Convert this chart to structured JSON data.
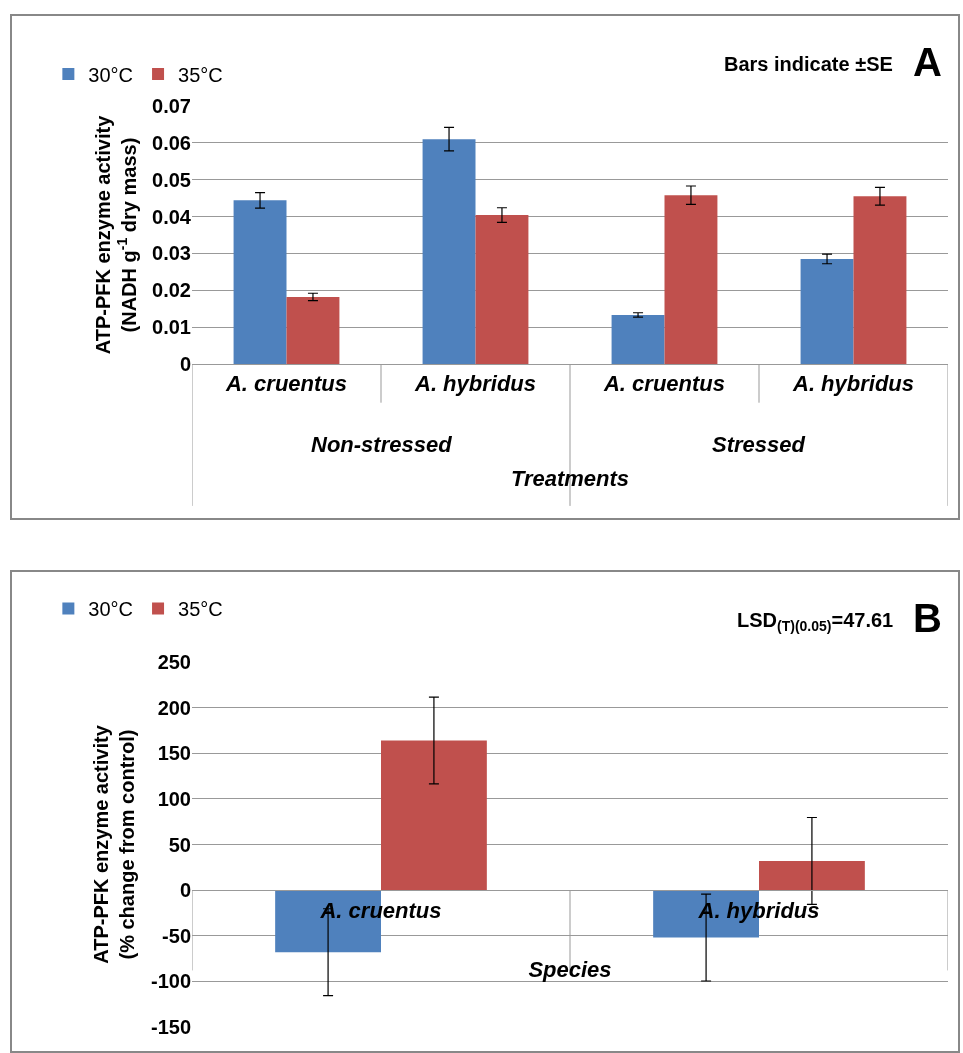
{
  "chart_data": [
    {
      "type": "bar",
      "title": "A",
      "subtitle": "Bars indicate ±SE",
      "xlabel": "Treatments",
      "ylabel": "ATP-PFK enzyme activity\n(NADH g$^{-1}$ dry mass)",
      "categories": [
        "A. cruentus",
        "A. hybridus",
        "A. cruentus",
        "A. hybridus"
      ],
      "annotations": [
        "Non-stressed",
        "Stressed"
      ],
      "series": [
        {
          "name": "30°C",
          "color": "#4f81bd",
          "values": [
            0.0444,
            0.061,
            0.0133,
            0.0285
          ],
          "errors": [
            0.0021,
            0.0032,
            0.0006,
            0.0013
          ]
        },
        {
          "name": "35°C",
          "color": "#c0504d",
          "values": [
            0.0182,
            0.0404,
            0.0458,
            0.0455
          ],
          "errors": [
            0.001,
            0.002,
            0.0025,
            0.0024
          ]
        }
      ],
      "ylim": [
        0,
        0.07
      ],
      "yticks": [
        0,
        0.01,
        0.02,
        0.03,
        0.04,
        0.05,
        0.06,
        0.07
      ],
      "grid": "y",
      "legend": "top left"
    },
    {
      "type": "bar",
      "title": "B",
      "subtitle": "LSD$_{(T)(0.05)}$=47.61",
      "xlabel": "Species",
      "ylabel": "ATP-PFK enzyme activity\n(% change from control)",
      "categories": [
        "A. cruentus",
        "A. hybridus"
      ],
      "series": [
        {
          "name": "30°C",
          "color": "#4f81bd",
          "values": [
            -68,
            -52
          ],
          "errors": [
            47.6,
            47.6
          ]
        },
        {
          "name": "35°C",
          "color": "#c0504d",
          "values": [
            164,
            32
          ],
          "errors": [
            47.6,
            47.6
          ]
        }
      ],
      "ylim": [
        -150,
        250
      ],
      "yticks": [
        -150,
        -100,
        -50,
        0,
        50,
        100,
        150,
        200,
        250
      ],
      "grid": "y",
      "legend": "top left"
    }
  ]
}
